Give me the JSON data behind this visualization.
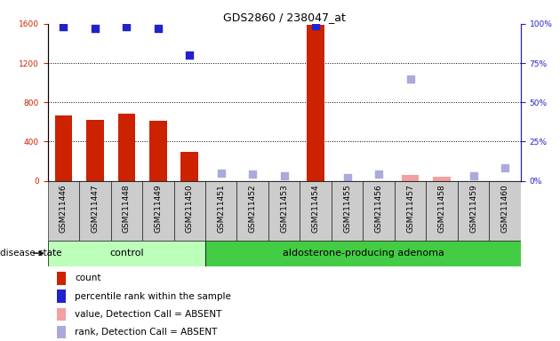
{
  "title": "GDS2860 / 238047_at",
  "samples": [
    "GSM211446",
    "GSM211447",
    "GSM211448",
    "GSM211449",
    "GSM211450",
    "GSM211451",
    "GSM211452",
    "GSM211453",
    "GSM211454",
    "GSM211455",
    "GSM211456",
    "GSM211457",
    "GSM211458",
    "GSM211459",
    "GSM211460"
  ],
  "count_values": [
    670,
    620,
    680,
    615,
    295,
    null,
    null,
    null,
    1590,
    null,
    null,
    null,
    null,
    null,
    null
  ],
  "count_absent": [
    null,
    null,
    null,
    null,
    null,
    null,
    null,
    null,
    null,
    null,
    null,
    55,
    40,
    null,
    null
  ],
  "percentile_values": [
    98,
    97,
    98,
    97,
    80,
    null,
    null,
    null,
    99,
    null,
    null,
    null,
    null,
    null,
    null
  ],
  "percentile_absent": [
    null,
    null,
    null,
    null,
    null,
    5,
    4,
    3,
    null,
    2,
    4,
    65,
    null,
    3,
    8
  ],
  "ylim_left": [
    0,
    1600
  ],
  "ylim_right": [
    0,
    100
  ],
  "yticks_left": [
    0,
    400,
    800,
    1200,
    1600
  ],
  "yticks_right": [
    0,
    25,
    50,
    75,
    100
  ],
  "yticklabels_right": [
    "0%",
    "25%",
    "50%",
    "75%",
    "100%"
  ],
  "grid_values": [
    400,
    800,
    1200
  ],
  "n_control": 5,
  "n_adenoma": 10,
  "bar_color": "#cc2200",
  "bar_absent_color": "#f4a0a0",
  "dot_color": "#2222cc",
  "dot_absent_color": "#aaaadd",
  "control_bg": "#bbffbb",
  "adenoma_bg": "#44cc44",
  "col_bg": "#cccccc",
  "disease_state_label": "disease state",
  "control_label": "control",
  "adenoma_label": "aldosterone-producing adenoma",
  "legend_labels": [
    "count",
    "percentile rank within the sample",
    "value, Detection Call = ABSENT",
    "rank, Detection Call = ABSENT"
  ],
  "legend_colors": [
    "#cc2200",
    "#2222cc",
    "#f4a0a0",
    "#aaaadd"
  ],
  "bar_width": 0.55,
  "dot_size": 35,
  "title_fontsize": 9,
  "tick_fontsize": 6.5,
  "legend_fontsize": 7.5
}
